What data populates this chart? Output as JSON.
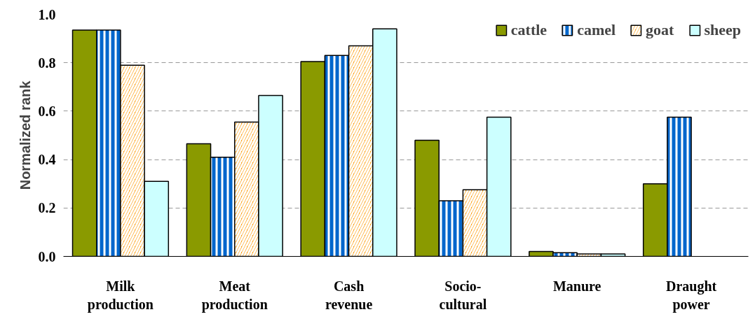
{
  "chart_data": {
    "type": "bar",
    "ylabel": "Normalized rank",
    "categories": [
      "Milk\nproduction",
      "Meat\nproduction",
      "Cash\nrevenue",
      "Socio-\ncultural",
      "Manure",
      "Draught\npower"
    ],
    "series": [
      {
        "name": "cattle",
        "color": "#8a9a00",
        "values": [
          0.935,
          0.465,
          0.805,
          0.48,
          0.02,
          0.3
        ]
      },
      {
        "name": "camel",
        "color": "#0066cc",
        "values": [
          0.935,
          0.41,
          0.83,
          0.23,
          0.015,
          0.575
        ]
      },
      {
        "name": "goat",
        "color": "#ff9900",
        "values": [
          0.79,
          0.555,
          0.87,
          0.275,
          0.01,
          null
        ]
      },
      {
        "name": "sheep",
        "color": "#ccffff",
        "values": [
          0.31,
          0.665,
          0.94,
          0.575,
          0.01,
          null
        ]
      }
    ],
    "ylim": [
      0,
      1.0
    ],
    "yticks": [
      {
        "value": 0,
        "label": "0.0"
      },
      {
        "value": 0.2,
        "label": "0.2"
      },
      {
        "value": 0.4,
        "label": "0.4"
      },
      {
        "value": 0.6,
        "label": "0.6"
      },
      {
        "value": 0.8,
        "label": "0.8"
      },
      {
        "value": 1.0,
        "label": "1.0"
      }
    ],
    "grid": "y",
    "legend": "top right"
  }
}
